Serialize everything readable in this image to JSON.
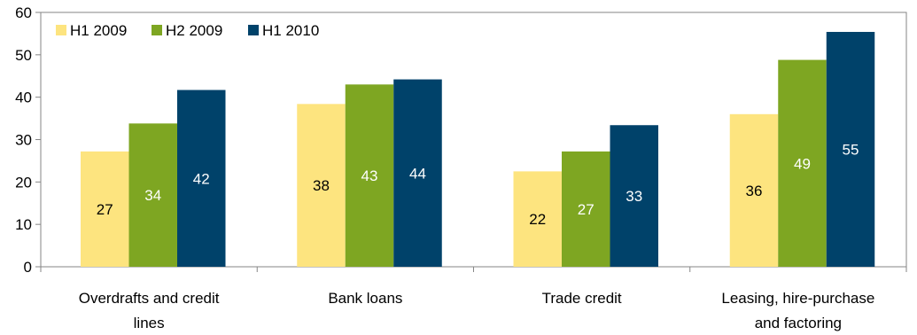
{
  "chart_data": {
    "type": "bar",
    "categories": [
      [
        "Overdrafts and credit",
        "lines"
      ],
      [
        "Bank loans"
      ],
      [
        "Trade credit"
      ],
      [
        "Leasing, hire-purchase",
        "and factoring"
      ]
    ],
    "series": [
      {
        "name": "H1 2009",
        "values": [
          27,
          38,
          22,
          36
        ],
        "color": "#fde47f",
        "label_color": "#000000"
      },
      {
        "name": "H2 2009",
        "values": [
          34,
          43,
          27,
          49
        ],
        "color": "#7ea622",
        "label_color": "#ffffff"
      },
      {
        "name": "H1 2010",
        "values": [
          42,
          44,
          33,
          55
        ],
        "color": "#00426a",
        "label_color": "#ffffff"
      }
    ],
    "bar_heights": [
      [
        27.2,
        38.4,
        22.5,
        36.0
      ],
      [
        33.8,
        43.0,
        27.2,
        48.8
      ],
      [
        41.7,
        44.2,
        33.4,
        55.4
      ]
    ],
    "ylim": [
      0,
      60
    ],
    "yticks": [
      0,
      10,
      20,
      30,
      40,
      50,
      60
    ],
    "legend_position": "top-left",
    "grid": false
  }
}
